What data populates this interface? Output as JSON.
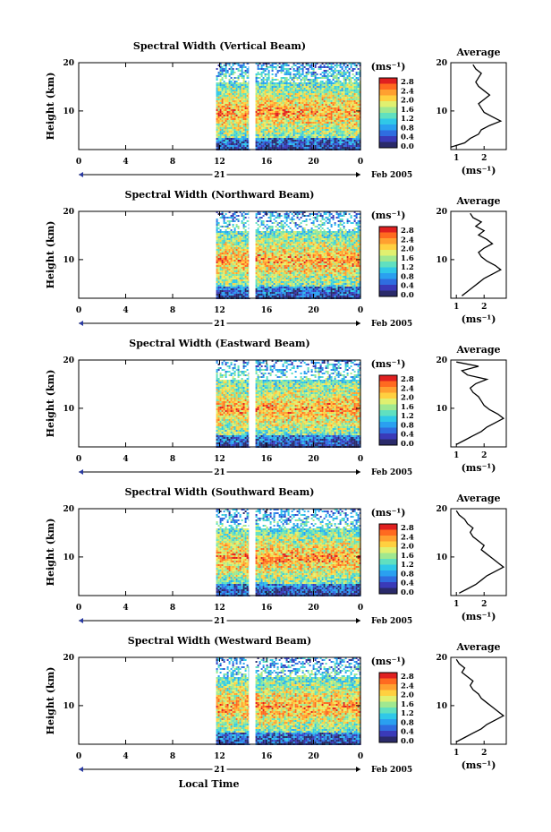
{
  "colors": {
    "scale": [
      "#2a2a6a",
      "#3a3ab8",
      "#2f6de0",
      "#2aa0f0",
      "#30c8e8",
      "#60e0c0",
      "#a0e890",
      "#e0f070",
      "#ffd040",
      "#ffa030",
      "#ff6a20",
      "#e02020"
    ],
    "line": "#000000"
  },
  "shared": {
    "date_label": "Feb 2005",
    "day_label": "21",
    "x_ticks": [
      "0",
      "4",
      "8",
      "12",
      "16",
      "20",
      "0"
    ],
    "y_label": "Height (km)",
    "avg_title": "Average",
    "avg_xlabel": "(ms⁻¹)",
    "units": "(ms⁻¹)",
    "colorbar_ticks": [
      "2.8",
      "2.4",
      "2.0",
      "1.6",
      "1.2",
      "0.8",
      "0.4",
      "0.0"
    ],
    "x_axis_label": "Local Time"
  },
  "panels": [
    {
      "title": "Spectral Width (Vertical Beam)",
      "avg_ticks": [
        "1",
        "2"
      ]
    },
    {
      "title": "Spectral Width (Northward Beam)",
      "avg_ticks": [
        "1",
        "2"
      ]
    },
    {
      "title": "Spectral Width (Eastward Beam)",
      "avg_ticks": [
        "1",
        "2"
      ]
    },
    {
      "title": "Spectral Width (Southward Beam)",
      "avg_ticks": [
        "1",
        "2"
      ]
    },
    {
      "title": "Spectral Width (Westward Beam)",
      "avg_ticks": [
        "1",
        "2"
      ]
    }
  ],
  "chart_data": [
    {
      "type": "heatmap",
      "title": "Spectral Width (Vertical Beam)",
      "xlabel": "",
      "ylabel": "Height (km)",
      "xlim": [
        0,
        24
      ],
      "ylim": [
        2,
        20
      ],
      "colorbar_range": [
        0.0,
        3.0
      ],
      "data_time_range": [
        11.7,
        24
      ],
      "gap_time": [
        14.5,
        15.0
      ],
      "peak_height_km": 10
    },
    {
      "type": "line",
      "title": "Average",
      "xlabel": "(ms⁻¹)",
      "ylabel": "Height (km)",
      "ylim": [
        2,
        20
      ],
      "x": [
        0.8,
        1.3,
        1.5,
        1.8,
        1.9,
        2.2,
        2.6,
        2.3,
        2.0,
        1.9,
        1.8,
        2.0,
        2.2,
        2.0,
        1.8,
        1.7,
        1.8,
        1.9,
        1.7,
        1.6
      ],
      "y": [
        2.5,
        3.4,
        4.3,
        5.2,
        6.1,
        7.0,
        7.9,
        8.8,
        9.7,
        10.6,
        11.5,
        12.4,
        13.3,
        14.2,
        15.1,
        16.0,
        16.9,
        17.8,
        18.7,
        19.6
      ]
    },
    {
      "type": "heatmap",
      "title": "Spectral Width (Northward Beam)",
      "xlabel": "",
      "ylabel": "Height (km)",
      "xlim": [
        0,
        24
      ],
      "ylim": [
        2,
        20
      ],
      "colorbar_range": [
        0.0,
        3.0
      ],
      "data_time_range": [
        11.7,
        24
      ],
      "gap_time": [
        14.5,
        15.0
      ],
      "peak_height_km": 10
    },
    {
      "type": "line",
      "title": "Average",
      "xlabel": "(ms⁻¹)",
      "ylabel": "Height (km)",
      "ylim": [
        2,
        20
      ],
      "x": [
        1.2,
        1.4,
        1.6,
        1.8,
        2.0,
        2.3,
        2.6,
        2.4,
        2.1,
        1.9,
        1.8,
        2.0,
        2.3,
        2.1,
        1.8,
        2.0,
        1.7,
        1.9,
        1.6,
        1.5
      ],
      "y": [
        2.5,
        3.4,
        4.3,
        5.2,
        6.1,
        7.0,
        7.9,
        8.8,
        9.7,
        10.6,
        11.5,
        12.4,
        13.3,
        14.2,
        15.1,
        16.0,
        16.9,
        17.8,
        18.7,
        19.6
      ]
    },
    {
      "type": "heatmap",
      "title": "Spectral Width (Eastward Beam)",
      "xlabel": "",
      "ylabel": "Height (km)",
      "xlim": [
        0,
        24
      ],
      "ylim": [
        2,
        20
      ],
      "colorbar_range": [
        0.0,
        3.0
      ],
      "data_time_range": [
        11.7,
        24
      ],
      "gap_time": [
        14.5,
        15.0
      ],
      "peak_height_km": 10
    },
    {
      "type": "line",
      "title": "Average",
      "xlabel": "(ms⁻¹)",
      "ylabel": "Height (km)",
      "ylim": [
        2,
        20
      ],
      "x": [
        1.0,
        1.3,
        1.6,
        1.9,
        2.1,
        2.4,
        2.7,
        2.5,
        2.2,
        2.0,
        1.9,
        1.8,
        1.6,
        1.5,
        1.7,
        2.1,
        1.4,
        1.2,
        1.8,
        1.0
      ],
      "y": [
        2.5,
        3.4,
        4.3,
        5.2,
        6.1,
        7.0,
        7.9,
        8.8,
        9.7,
        10.6,
        11.5,
        12.4,
        13.3,
        14.2,
        15.1,
        16.0,
        16.9,
        17.8,
        18.7,
        19.6
      ]
    },
    {
      "type": "heatmap",
      "title": "Spectral Width (Southward Beam)",
      "xlabel": "",
      "ylabel": "Height (km)",
      "xlim": [
        0,
        24
      ],
      "ylim": [
        2,
        20
      ],
      "colorbar_range": [
        0.0,
        3.0
      ],
      "data_time_range": [
        11.7,
        24
      ],
      "gap_time": [
        14.5,
        15.0
      ],
      "peak_height_km": 10
    },
    {
      "type": "line",
      "title": "Average",
      "xlabel": "(ms⁻¹)",
      "ylabel": "Height (km)",
      "ylim": [
        2,
        20
      ],
      "x": [
        1.1,
        1.4,
        1.7,
        1.9,
        2.1,
        2.4,
        2.7,
        2.5,
        2.3,
        2.1,
        1.9,
        2.0,
        1.8,
        1.6,
        1.5,
        1.6,
        1.4,
        1.3,
        1.1,
        1.0
      ],
      "y": [
        2.5,
        3.4,
        4.3,
        5.2,
        6.1,
        7.0,
        7.9,
        8.8,
        9.7,
        10.6,
        11.5,
        12.4,
        13.3,
        14.2,
        15.1,
        16.0,
        16.9,
        17.8,
        18.7,
        19.6
      ]
    },
    {
      "type": "heatmap",
      "title": "Spectral Width (Westward Beam)",
      "xlabel": "Local Time",
      "ylabel": "Height (km)",
      "xlim": [
        0,
        24
      ],
      "ylim": [
        2,
        20
      ],
      "colorbar_range": [
        0.0,
        3.0
      ],
      "data_time_range": [
        11.7,
        24
      ],
      "gap_time": [
        14.5,
        15.0
      ],
      "peak_height_km": 10
    },
    {
      "type": "line",
      "title": "Average",
      "xlabel": "(ms⁻¹)",
      "ylabel": "Height (km)",
      "ylim": [
        2,
        20
      ],
      "x": [
        1.0,
        1.3,
        1.6,
        1.9,
        2.1,
        2.4,
        2.7,
        2.5,
        2.3,
        2.1,
        1.9,
        1.8,
        1.6,
        1.5,
        1.6,
        1.4,
        1.2,
        1.3,
        1.1,
        1.0
      ],
      "y": [
        2.5,
        3.4,
        4.3,
        5.2,
        6.1,
        7.0,
        7.9,
        8.8,
        9.7,
        10.6,
        11.5,
        12.4,
        13.3,
        14.2,
        15.1,
        16.0,
        16.9,
        17.8,
        18.7,
        19.6
      ]
    }
  ]
}
